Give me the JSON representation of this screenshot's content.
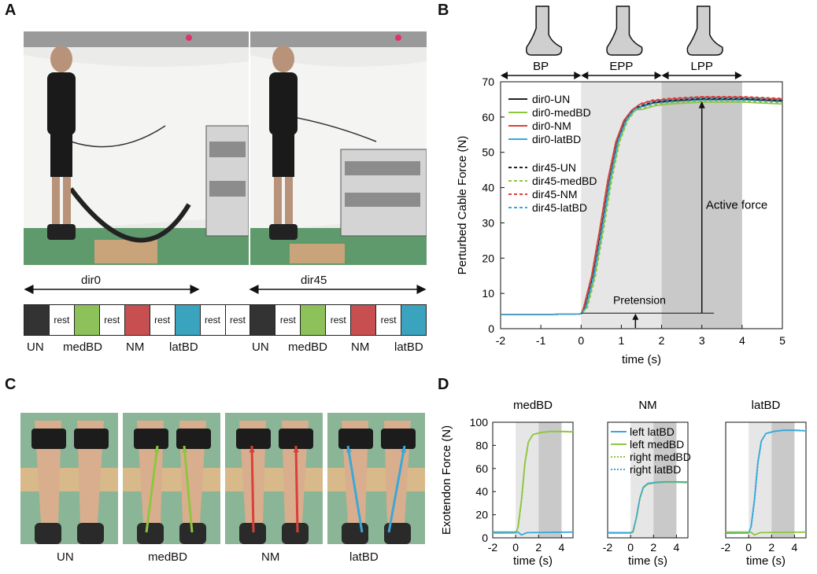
{
  "panels": {
    "a": "A",
    "b": "B",
    "c": "C",
    "d": "D"
  },
  "panel_a": {
    "direction_labels": [
      "dir0",
      "dir45"
    ],
    "sequence": [
      {
        "text": "",
        "color": "#333333"
      },
      {
        "text": "rest",
        "color": "#ffffff"
      },
      {
        "text": "",
        "color": "#8dc25b"
      },
      {
        "text": "rest",
        "color": "#ffffff"
      },
      {
        "text": "",
        "color": "#c84f4f"
      },
      {
        "text": "rest",
        "color": "#ffffff"
      },
      {
        "text": "",
        "color": "#3aa3bd"
      },
      {
        "text": "rest",
        "color": "#ffffff"
      },
      {
        "text": "rest",
        "color": "#ffffff"
      },
      {
        "text": "",
        "color": "#333333"
      },
      {
        "text": "rest",
        "color": "#ffffff"
      },
      {
        "text": "",
        "color": "#8dc25b"
      },
      {
        "text": "rest",
        "color": "#ffffff"
      },
      {
        "text": "",
        "color": "#c84f4f"
      },
      {
        "text": "rest",
        "color": "#ffffff"
      },
      {
        "text": "",
        "color": "#3aa3bd"
      }
    ],
    "condition_labels_left": [
      "UN",
      "medBD",
      "NM",
      "latBD"
    ],
    "condition_labels_right": [
      "UN",
      "medBD",
      "NM",
      "latBD"
    ]
  },
  "panel_c": {
    "labels": [
      "UN",
      "medBD",
      "NM",
      "latBD"
    ]
  },
  "colors": {
    "UN": "#222222",
    "medBD": "#8dc63f",
    "NM": "#d9403a",
    "latBD": "#3aa8d8",
    "light_band": "#e6e6e6",
    "dark_band": "#c9c9c9"
  },
  "chart_data": [
    {
      "type": "line",
      "panel": "B",
      "xlabel": "time (s)",
      "ylabel": "Perturbed Cable Force (N)",
      "xlim": [
        -2,
        5
      ],
      "ylim": [
        0,
        70
      ],
      "xticks": [
        "-2",
        "-1",
        "0",
        "1",
        "2",
        "3",
        "4",
        "5"
      ],
      "yticks": [
        "0",
        "10",
        "20",
        "30",
        "40",
        "50",
        "60",
        "70"
      ],
      "phases": [
        {
          "label": "BP",
          "x0": -2,
          "x1": 0
        },
        {
          "label": "EPP",
          "x0": 0,
          "x1": 2
        },
        {
          "label": "LPP",
          "x0": 2,
          "x1": 4
        }
      ],
      "annotations": {
        "pretension": "Pretension",
        "active_force": "Active force"
      },
      "series": [
        {
          "name": "dir0-UN",
          "color": "#222222",
          "dash": false
        },
        {
          "name": "dir0-medBD",
          "color": "#8dc63f",
          "dash": false
        },
        {
          "name": "dir0-NM",
          "color": "#d9403a",
          "dash": false
        },
        {
          "name": "dir0-latBD",
          "color": "#3aa8d8",
          "dash": false
        },
        {
          "name": "dir45-UN",
          "color": "#222222",
          "dash": true
        },
        {
          "name": "dir45-medBD",
          "color": "#8dc63f",
          "dash": true
        },
        {
          "name": "dir45-NM",
          "color": "#d9403a",
          "dash": true
        },
        {
          "name": "dir45-latBD",
          "color": "#3aa8d8",
          "dash": true
        }
      ],
      "curve_x": [
        -2,
        -1,
        0,
        0.1,
        0.3,
        0.5,
        0.7,
        0.9,
        1.1,
        1.3,
        1.5,
        1.8,
        2.2,
        3,
        4,
        5
      ],
      "curve_y": [
        4,
        4,
        4.2,
        6,
        15,
        28,
        42,
        53,
        59,
        62,
        63,
        64,
        64.5,
        65,
        65,
        64.5
      ]
    },
    {
      "type": "line",
      "panel": "D",
      "ylabel": "Exotendon Force (N)",
      "ylim": [
        0,
        100
      ],
      "yticks": [
        "0",
        "20",
        "40",
        "60",
        "80",
        "100"
      ],
      "xlim": [
        -2,
        5
      ],
      "xticks": [
        "-2",
        "0",
        "2",
        "4"
      ],
      "xlabel": "time (s)",
      "legend": [
        "left latBD",
        "left medBD",
        "right medBD",
        "right latBD"
      ],
      "subplots": [
        {
          "title": "medBD",
          "active": "#8dc63f",
          "passive": "#3aa8d8",
          "peak": 92
        },
        {
          "title": "NM",
          "active": "#8dc63f",
          "passive": "#3aa8d8",
          "peak": 48
        },
        {
          "title": "latBD",
          "active": "#3aa8d8",
          "passive": "#8dc63f",
          "peak": 93
        }
      ]
    }
  ]
}
